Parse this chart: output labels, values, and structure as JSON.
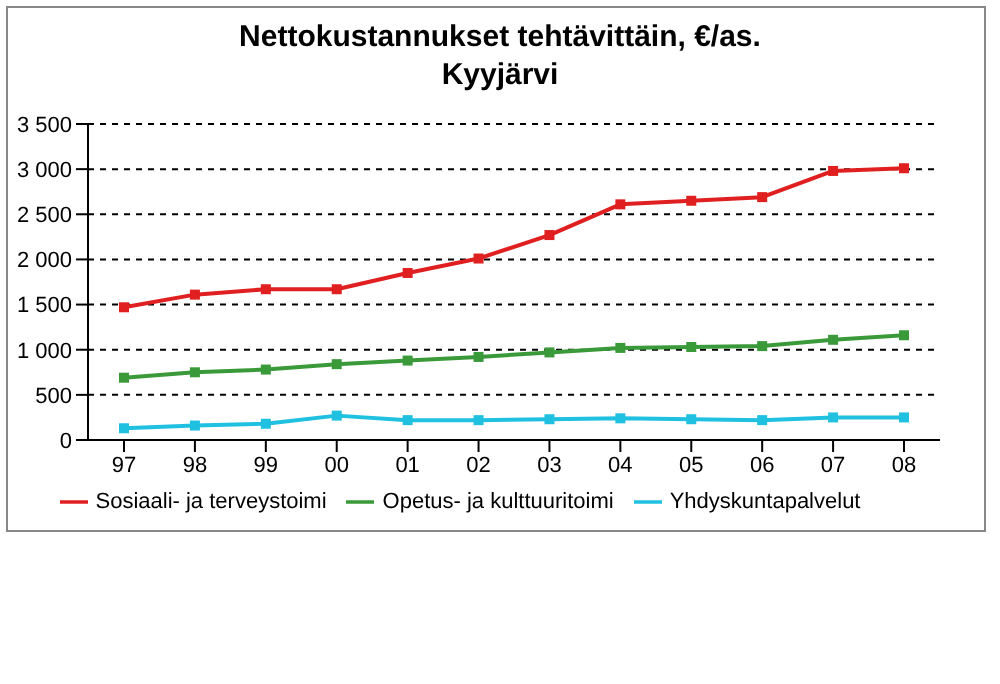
{
  "chart_data": {
    "type": "line",
    "title": "Nettokustannukset tehtävittäin, €/as.",
    "subtitle": "Kyyjärvi",
    "categories": [
      "97",
      "98",
      "99",
      "00",
      "01",
      "02",
      "03",
      "04",
      "05",
      "06",
      "07",
      "08"
    ],
    "series": [
      {
        "name": "Sosiaali- ja terveystoimi",
        "color": "#e02020",
        "values": [
          1470,
          1610,
          1670,
          1670,
          1850,
          2010,
          2270,
          2610,
          2650,
          2690,
          2980,
          3010
        ]
      },
      {
        "name": "Opetus- ja kulttuuritoimi",
        "color": "#3a9a3a",
        "values": [
          690,
          750,
          780,
          840,
          880,
          920,
          970,
          1020,
          1030,
          1040,
          1110,
          1160
        ]
      },
      {
        "name": "Yhdyskuntapalvelut",
        "color": "#20c0e0",
        "values": [
          130,
          160,
          180,
          270,
          220,
          220,
          230,
          240,
          230,
          220,
          250,
          250
        ]
      }
    ],
    "ylim": [
      0,
      3500
    ],
    "yticks": [
      {
        "value": 0,
        "label": "0"
      },
      {
        "value": 500,
        "label": "500"
      },
      {
        "value": 1000,
        "label": "1 000"
      },
      {
        "value": 1500,
        "label": "1 500"
      },
      {
        "value": 2000,
        "label": "2 000"
      },
      {
        "value": 2500,
        "label": "2 500"
      },
      {
        "value": 3000,
        "label": "3 000"
      },
      {
        "value": 3500,
        "label": "3 500"
      }
    ],
    "grid": "y",
    "legend": "bottom",
    "marker": "square",
    "line_style": "solid"
  }
}
